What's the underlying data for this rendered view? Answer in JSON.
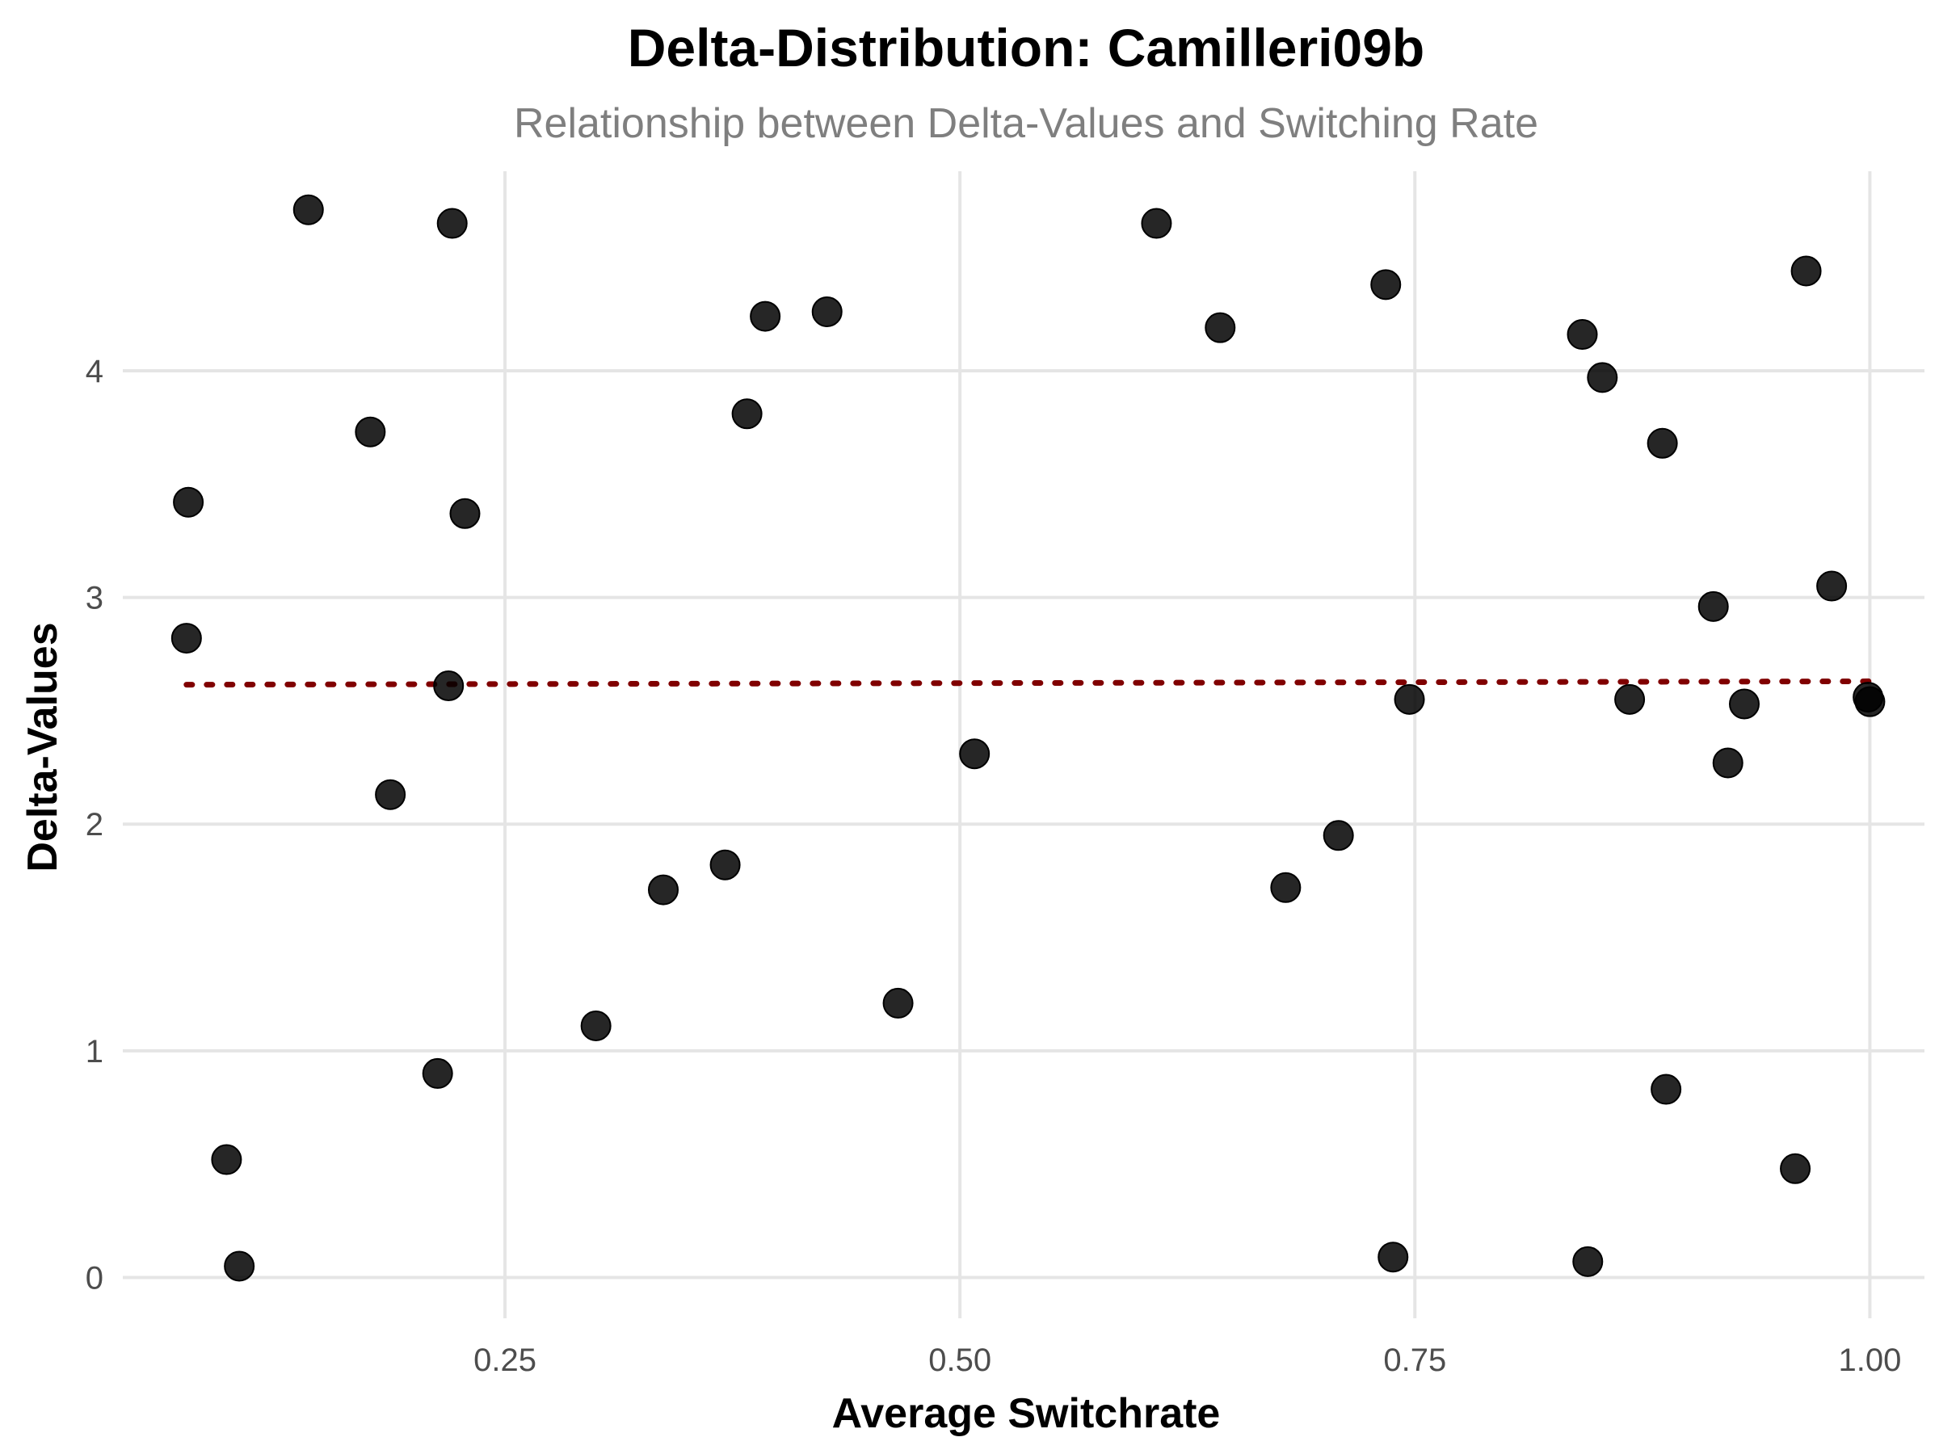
{
  "chart_data": {
    "type": "scatter",
    "title": "Delta-Distribution: Camilleri09b",
    "subtitle": "Relationship between Delta-Values and Switching Rate",
    "xlabel": "Average Switchrate",
    "ylabel": "Delta-Values",
    "xlim": [
      0.04,
      1.03
    ],
    "ylim": [
      -0.18,
      4.88
    ],
    "x_ticks": [
      0.25,
      0.5,
      0.75,
      1.0
    ],
    "x_tick_labels": [
      "0.25",
      "0.50",
      "0.75",
      "1.00"
    ],
    "y_ticks": [
      0,
      1,
      2,
      3,
      4
    ],
    "y_tick_labels": [
      "0",
      "1",
      "2",
      "3",
      "4"
    ],
    "grid": true,
    "legend": "none",
    "point_color": "#000000",
    "trend_color": "#800000",
    "trend_line": {
      "x": [
        0.075,
        1.0
      ],
      "y": [
        2.615,
        2.63
      ]
    },
    "points": [
      {
        "x": 0.075,
        "y": 2.82
      },
      {
        "x": 0.076,
        "y": 3.42
      },
      {
        "x": 0.097,
        "y": 0.52
      },
      {
        "x": 0.104,
        "y": 0.05
      },
      {
        "x": 0.142,
        "y": 4.71
      },
      {
        "x": 0.176,
        "y": 3.73
      },
      {
        "x": 0.187,
        "y": 2.13
      },
      {
        "x": 0.213,
        "y": 0.9
      },
      {
        "x": 0.219,
        "y": 2.61
      },
      {
        "x": 0.221,
        "y": 4.65
      },
      {
        "x": 0.228,
        "y": 3.37
      },
      {
        "x": 0.3,
        "y": 1.11
      },
      {
        "x": 0.337,
        "y": 1.71
      },
      {
        "x": 0.371,
        "y": 1.82
      },
      {
        "x": 0.383,
        "y": 3.81
      },
      {
        "x": 0.393,
        "y": 4.24
      },
      {
        "x": 0.427,
        "y": 4.26
      },
      {
        "x": 0.466,
        "y": 1.21
      },
      {
        "x": 0.508,
        "y": 2.31
      },
      {
        "x": 0.608,
        "y": 4.65
      },
      {
        "x": 0.643,
        "y": 4.19
      },
      {
        "x": 0.679,
        "y": 1.72
      },
      {
        "x": 0.708,
        "y": 1.95
      },
      {
        "x": 0.734,
        "y": 4.38
      },
      {
        "x": 0.738,
        "y": 0.09
      },
      {
        "x": 0.747,
        "y": 2.55
      },
      {
        "x": 0.842,
        "y": 4.16
      },
      {
        "x": 0.845,
        "y": 0.07
      },
      {
        "x": 0.853,
        "y": 3.97
      },
      {
        "x": 0.868,
        "y": 2.55
      },
      {
        "x": 0.886,
        "y": 3.68
      },
      {
        "x": 0.888,
        "y": 0.83
      },
      {
        "x": 0.914,
        "y": 2.96
      },
      {
        "x": 0.922,
        "y": 2.27
      },
      {
        "x": 0.931,
        "y": 2.53
      },
      {
        "x": 0.959,
        "y": 0.48
      },
      {
        "x": 0.965,
        "y": 4.44
      },
      {
        "x": 0.979,
        "y": 3.05
      },
      {
        "x": 0.999,
        "y": 2.56
      },
      {
        "x": 1.0,
        "y": 2.54
      }
    ]
  }
}
